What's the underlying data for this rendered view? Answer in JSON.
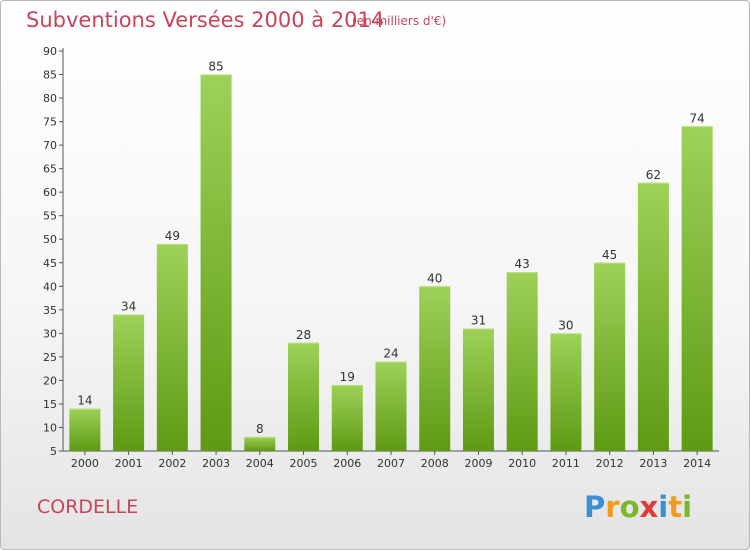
{
  "title": "Subventions Versées 2000 à 2014",
  "subtitle": "(en milliers d'€)",
  "place": "CORDELLE",
  "logo_text": "Proxiti",
  "colors": {
    "title": "#c8445a",
    "bar_light": "#9ed158",
    "bar_dark": "#5e9a14",
    "axis": "#555555",
    "grid": "#cfcfcf"
  },
  "chart_data": {
    "type": "bar",
    "title": "Subventions Versées 2000 à 2014",
    "xlabel": "",
    "ylabel": "",
    "categories": [
      "2000",
      "2001",
      "2002",
      "2003",
      "2004",
      "2005",
      "2006",
      "2007",
      "2008",
      "2009",
      "2010",
      "2011",
      "2012",
      "2013",
      "2014"
    ],
    "values": [
      14,
      34,
      49,
      85,
      8,
      28,
      19,
      24,
      40,
      31,
      43,
      30,
      45,
      62,
      74
    ],
    "ylim": [
      5,
      90
    ],
    "yticks": [
      5,
      10,
      15,
      20,
      25,
      30,
      35,
      40,
      45,
      50,
      55,
      60,
      65,
      70,
      75,
      80,
      85,
      90
    ],
    "grid": false,
    "legend": "none",
    "data_labels": true
  }
}
